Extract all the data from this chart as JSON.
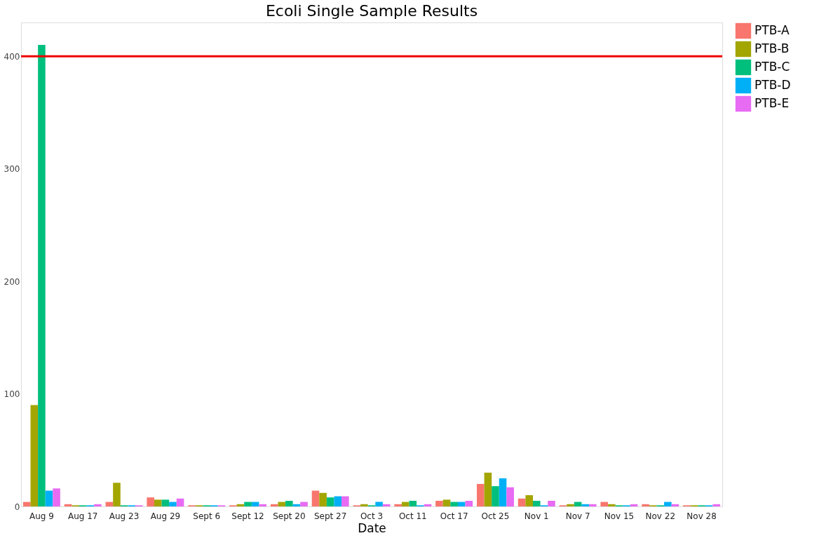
{
  "chart_data": {
    "type": "bar",
    "title": "Ecoli Single Sample Results",
    "xlabel": "Date",
    "categories": [
      "Aug 9",
      "Aug 17",
      "Aug 23",
      "Aug 29",
      "Sept 6",
      "Sept 12",
      "Sept 20",
      "Sept 27",
      "Oct 3",
      "Oct 11",
      "Oct 17",
      "Oct 25",
      "Nov 1",
      "Nov 7",
      "Nov 15",
      "Nov 22",
      "Nov 28"
    ],
    "series": [
      {
        "name": "PTB-A",
        "color": "#f8766d",
        "values": [
          4,
          2,
          4,
          8,
          1,
          1,
          2,
          14,
          1,
          2,
          5,
          20,
          7,
          1,
          4,
          2,
          1
        ]
      },
      {
        "name": "PTB-B",
        "color": "#a3a500",
        "values": [
          90,
          1,
          21,
          6,
          1,
          2,
          4,
          12,
          2,
          4,
          6,
          30,
          10,
          2,
          2,
          1,
          1
        ]
      },
      {
        "name": "PTB-C",
        "color": "#00bf7d",
        "values": [
          410,
          1,
          1,
          6,
          1,
          4,
          5,
          8,
          1,
          5,
          4,
          18,
          5,
          4,
          1,
          1,
          1
        ]
      },
      {
        "name": "PTB-D",
        "color": "#00b0f6",
        "values": [
          14,
          1,
          1,
          4,
          1,
          4,
          2,
          9,
          4,
          1,
          4,
          25,
          1,
          2,
          1,
          4,
          1
        ]
      },
      {
        "name": "PTB-E",
        "color": "#e76bf3",
        "values": [
          16,
          2,
          1,
          7,
          1,
          2,
          4,
          9,
          2,
          2,
          5,
          17,
          5,
          2,
          2,
          2,
          2
        ]
      }
    ],
    "ylim": [
      0,
      430
    ],
    "yticks": [
      0,
      100,
      200,
      300,
      400
    ],
    "ref_lines": [
      {
        "axis": "y",
        "value": 400,
        "color": "#ee0000"
      }
    ],
    "legend": "right",
    "grid": false
  }
}
